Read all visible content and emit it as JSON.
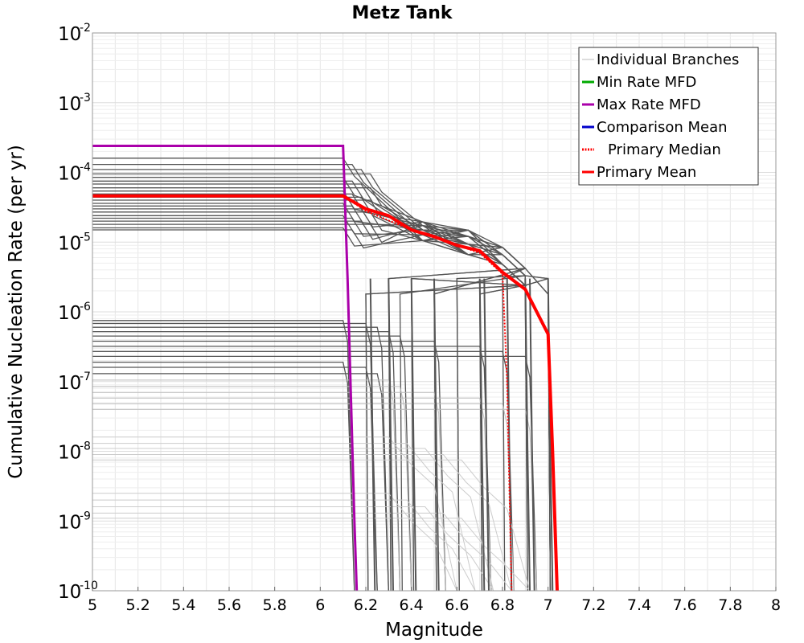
{
  "chart_data": {
    "type": "line",
    "title": "Metz Tank",
    "xlabel": "Magnitude",
    "ylabel": "Cumulative Nucleation Rate (per yr)",
    "xlim": [
      5,
      8
    ],
    "ylim": [
      1e-10,
      0.01
    ],
    "yscale": "log",
    "grid": true,
    "legend_position": "top-right",
    "x_ticks": [
      "5",
      "5.2",
      "5.4",
      "5.6",
      "5.8",
      "6",
      "6.2",
      "6.4",
      "6.6",
      "6.8",
      "7",
      "7.2",
      "7.4",
      "7.6",
      "7.8",
      "8"
    ],
    "y_ticks": [
      {
        "base": "10",
        "exp": "-2"
      },
      {
        "base": "10",
        "exp": "-3"
      },
      {
        "base": "10",
        "exp": "-4"
      },
      {
        "base": "10",
        "exp": "-5"
      },
      {
        "base": "10",
        "exp": "-6"
      },
      {
        "base": "10",
        "exp": "-7"
      },
      {
        "base": "10",
        "exp": "-8"
      },
      {
        "base": "10",
        "exp": "-9"
      },
      {
        "base": "10",
        "exp": "-10"
      }
    ],
    "series": [
      {
        "name": "Individual Branches",
        "color": "#bbbbbb",
        "width": 1,
        "dash": "",
        "points": []
      },
      {
        "name": "Min Rate MFD",
        "color": "#00aa00",
        "width": 3,
        "dash": "",
        "points": []
      },
      {
        "name": "Max Rate MFD",
        "color": "#aa00aa",
        "width": 3,
        "dash": "",
        "points": [
          [
            5.0,
            0.00024
          ],
          [
            6.1,
            0.00024
          ],
          [
            6.12,
            3e-06
          ],
          [
            6.15,
            1e-09
          ],
          [
            6.16,
            1e-10
          ]
        ]
      },
      {
        "name": "Comparison Mean",
        "color": "#0000cc",
        "width": 3,
        "dash": "",
        "points": []
      },
      {
        "name": "Primary Median",
        "color": "#ff0000",
        "width": 2,
        "dash": "2,2",
        "points": [
          [
            5.0,
            4.6e-05
          ],
          [
            6.1,
            4.6e-05
          ],
          [
            6.2,
            2.8e-05
          ],
          [
            6.4,
            1.5e-05
          ],
          [
            6.7,
            7e-06
          ],
          [
            6.8,
            3.5e-06
          ],
          [
            6.82,
            1e-07
          ],
          [
            6.84,
            1e-10
          ]
        ]
      },
      {
        "name": "Primary Mean",
        "color": "#ff0000",
        "width": 4,
        "dash": "",
        "points": [
          [
            5.0,
            4.6e-05
          ],
          [
            6.1,
            4.6e-05
          ],
          [
            6.2,
            3e-05
          ],
          [
            6.3,
            2.4e-05
          ],
          [
            6.4,
            1.5e-05
          ],
          [
            6.5,
            1.2e-05
          ],
          [
            6.6,
            9e-06
          ],
          [
            6.7,
            7.5e-06
          ],
          [
            6.8,
            3.7e-06
          ],
          [
            6.9,
            2.1e-06
          ],
          [
            7.0,
            4.8e-07
          ],
          [
            7.02,
            1e-08
          ],
          [
            7.04,
            1e-10
          ]
        ]
      }
    ],
    "branches": {
      "upper_levels": [
        0.00016,
        0.00013,
        0.00011,
        9.5e-05,
        8.5e-05,
        7.5e-05,
        6.8e-05,
        6e-05,
        5.4e-05,
        4.9e-05,
        4.4e-05,
        4e-05,
        3.6e-05,
        3.3e-05,
        3e-05,
        2.7e-05,
        2.4e-05,
        2.2e-05,
        2e-05,
        1.8e-05,
        1.6e-05,
        1.5e-05
      ],
      "lower_levels": [
        7.5e-07,
        6.8e-07,
        6e-07,
        5.2e-07,
        4.5e-07,
        3.8e-07,
        3.2e-07,
        2.7e-07,
        2.3e-07,
        1.9e-07,
        1.6e-07,
        1.3e-07,
        1.05e-07,
        8.5e-08,
        7e-08,
        5.8e-08,
        4.8e-08,
        4e-08
      ],
      "faint_levels": [
        1.6e-08,
        1.3e-08,
        1.1e-08,
        9e-09,
        7.5e-09,
        2.5e-09,
        2e-09,
        1.6e-09,
        1.3e-09,
        1.1e-09
      ]
    }
  }
}
